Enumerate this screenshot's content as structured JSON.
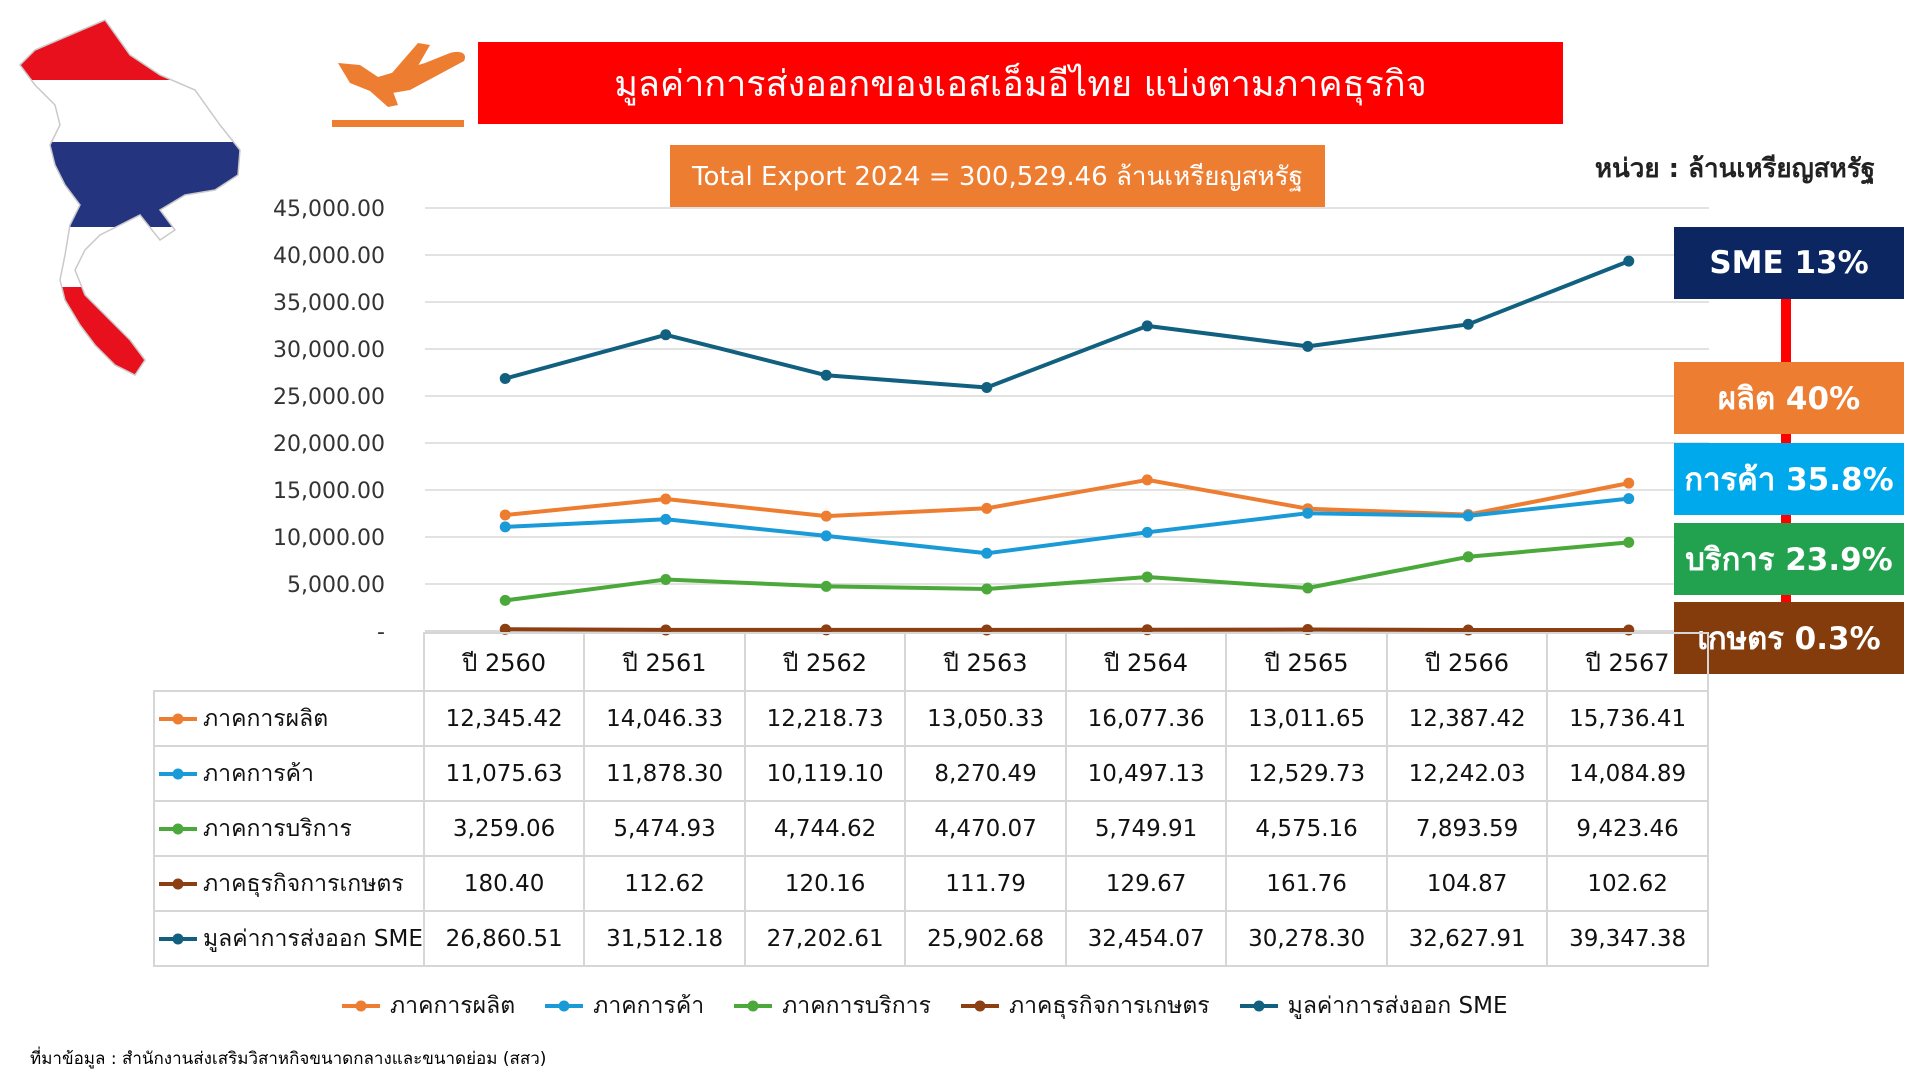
{
  "title": "มูลค่าการส่งออกของเอสเอ็มอีไทย แบ่งตามภาคธุรกิจ",
  "total_export": "Total Export 2024 = 300,529.46 ล้านเหรียญสหรัฐ",
  "unit_label": "หน่วย : ล้านเหรียญสหรัฐ",
  "source_note": "ที่มาข้อมูล : สำนักงานส่งเสริมวิสาหกิจขนาดกลางและขนาดย่อม (สสว)",
  "icons": {
    "map": "thailand-flag-map-icon",
    "plane": "airplane-takeoff-icon"
  },
  "colors": {
    "title_bg": "#ff0000",
    "total_bg": "#ed7d31"
  },
  "share_boxes": [
    {
      "label": "SME 13%",
      "color": "#0c2661"
    },
    {
      "label": "ผลิต 40%",
      "color": "#ed7d31"
    },
    {
      "label": "การค้า 35.8%",
      "color": "#00a9ec"
    },
    {
      "label": "บริการ 23.9%",
      "color": "#22a24f"
    },
    {
      "label": "เกษตร 0.3%",
      "color": "#843c0c"
    }
  ],
  "chart_data": {
    "type": "line",
    "categories": [
      "ปี 2560",
      "ปี 2561",
      "ปี 2562",
      "ปี 2563",
      "ปี 2564",
      "ปี 2565",
      "ปี 2566",
      "ปี 2567"
    ],
    "ylim": [
      0,
      45000
    ],
    "yticks": [
      "-",
      "5,000.00",
      "10,000.00",
      "15,000.00",
      "20,000.00",
      "25,000.00",
      "30,000.00",
      "35,000.00",
      "40,000.00",
      "45,000.00"
    ],
    "ytick_values": [
      0,
      5000,
      10000,
      15000,
      20000,
      25000,
      30000,
      35000,
      40000,
      45000
    ],
    "grid": true,
    "legend": "bottom",
    "series": [
      {
        "name": "ภาคการผลิต",
        "color": "#ed7d31",
        "values": [
          12345.42,
          14046.33,
          12218.73,
          13050.33,
          16077.36,
          13011.65,
          12387.42,
          15736.41
        ],
        "labels": [
          "12,345.42",
          "14,046.33",
          "12,218.73",
          "13,050.33",
          "16,077.36",
          "13,011.65",
          "12,387.42",
          "15,736.41"
        ]
      },
      {
        "name": "ภาคการค้า",
        "color": "#1a9ad6",
        "values": [
          11075.63,
          11878.3,
          10119.1,
          8270.49,
          10497.13,
          12529.73,
          12242.03,
          14084.89
        ],
        "labels": [
          "11,075.63",
          "11,878.30",
          "10,119.10",
          "8,270.49",
          "10,497.13",
          "12,529.73",
          "12,242.03",
          "14,084.89"
        ]
      },
      {
        "name": "ภาคการบริการ",
        "color": "#4aa93a",
        "values": [
          3259.06,
          5474.93,
          4744.62,
          4470.07,
          5749.91,
          4575.16,
          7893.59,
          9423.46
        ],
        "labels": [
          "3,259.06",
          "5,474.93",
          "4,744.62",
          "4,470.07",
          "5,749.91",
          "4,575.16",
          "7,893.59",
          "9,423.46"
        ]
      },
      {
        "name": "ภาคธุรกิจการเกษตร",
        "color": "#8b3f12",
        "values": [
          180.4,
          112.62,
          120.16,
          111.79,
          129.67,
          161.76,
          104.87,
          102.62
        ],
        "labels": [
          "180.40",
          "112.62",
          "120.16",
          "111.79",
          "129.67",
          "161.76",
          "104.87",
          "102.62"
        ]
      },
      {
        "name": "มูลค่าการส่งออก SME",
        "color": "#11607f",
        "values": [
          26860.51,
          31512.18,
          27202.61,
          25902.68,
          32454.07,
          30278.3,
          32627.91,
          39347.38
        ],
        "labels": [
          "26,860.51",
          "31,512.18",
          "27,202.61",
          "25,902.68",
          "32,454.07",
          "30,278.30",
          "32,627.91",
          "39,347.38"
        ]
      }
    ]
  }
}
